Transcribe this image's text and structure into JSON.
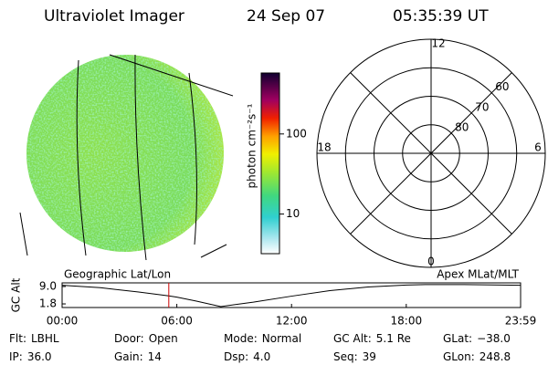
{
  "header": {
    "title": "Ultraviolet Imager",
    "date": "24 Sep 07",
    "time": "05:35:39 UT"
  },
  "colorbar": {
    "label": "photon cm⁻²s⁻¹",
    "lim": [
      3.2,
      577
    ],
    "log": true,
    "ticks": [
      10,
      100
    ]
  },
  "polar": {
    "lat_min": 50,
    "lat_rings": [
      60,
      70,
      80
    ],
    "mlt_labels": [
      12,
      6,
      0,
      18
    ]
  },
  "chart_data": {
    "type": "line",
    "ylabel": "GC Alt",
    "left_label": "Geographic Lat/Lon",
    "right_label": "Apex MLat/MLT",
    "x": [
      0,
      2,
      4,
      5.58,
      6,
      7,
      8.3,
      10,
      12,
      14,
      16,
      18,
      19,
      21,
      23.98
    ],
    "values": [
      9.5,
      8.5,
      6.7,
      5.1,
      4.6,
      3.0,
      0.7,
      2.5,
      5.0,
      7.3,
      8.8,
      9.6,
      9.8,
      9.8,
      9.5
    ],
    "color": "#000000",
    "marker_x": 5.58,
    "marker_color": "#cc0000",
    "xlim": [
      0,
      23.98
    ],
    "xticks": [
      {
        "value": 0,
        "label": "00:00"
      },
      {
        "value": 6,
        "label": "06:00"
      },
      {
        "value": 12,
        "label": "12:00"
      },
      {
        "value": 18,
        "label": "18:00"
      },
      {
        "value": 23.98,
        "label": "23:59"
      }
    ],
    "ylim": [
      0.3,
      10.5
    ],
    "yticks": [
      {
        "value": 9,
        "label": "9.0"
      },
      1.8
    ]
  },
  "footer": [
    [
      {
        "label": "Flt:",
        "value": "LBHL"
      },
      {
        "label": "Door:",
        "value": "Open"
      },
      {
        "label": "Mode:",
        "value": "Normal"
      },
      {
        "label": "GC Alt:",
        "value": "5.1 Re"
      },
      {
        "label": "GLat:",
        "value": "−38.0"
      }
    ],
    [
      {
        "label": "IP:",
        "value": "36.0"
      },
      {
        "label": "Gain:",
        "value": "14"
      },
      {
        "label": "Dsp:",
        "value": "4.0"
      },
      {
        "label": "Seq:",
        "value": "39"
      },
      {
        "label": "GLon:",
        "value": "248.8"
      }
    ]
  ]
}
